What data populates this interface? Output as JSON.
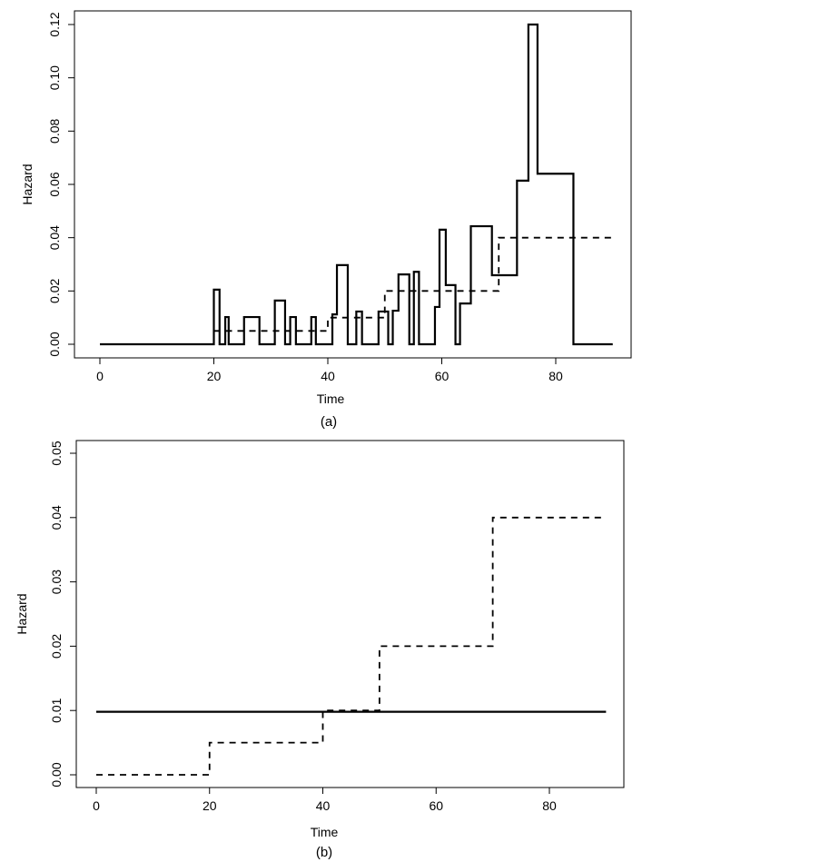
{
  "chart_data": [
    {
      "type": "line",
      "step": true,
      "caption": "(a)",
      "xlabel": "Time",
      "ylabel": "Hazard",
      "xlim": [
        0,
        90
      ],
      "ylim": [
        0,
        0.12
      ],
      "xticks": [
        "0",
        "20",
        "40",
        "60",
        "80"
      ],
      "yticks": [
        "0.00",
        "0.02",
        "0.04",
        "0.06",
        "0.08",
        "0.10",
        "0.12"
      ],
      "grid": false,
      "series": [
        {
          "style": "solid",
          "breaks": [
            0,
            20,
            21,
            22,
            22.6,
            25.3,
            28,
            30.7,
            32.5,
            33.4,
            34.4,
            37.1,
            37.9,
            40.8,
            41.6,
            43.5,
            45,
            46,
            48.9,
            50.6,
            51.4,
            52.4,
            54.3,
            55.1,
            56,
            58.8,
            59.6,
            60.7,
            62.4,
            63.2,
            65.1,
            68.8,
            73.2,
            75.2,
            76.8,
            83.1,
            90
          ],
          "values": [
            0,
            0.0205,
            0,
            0.0102,
            0,
            0.0102,
            0,
            0.0164,
            0,
            0.0102,
            0,
            0.0102,
            0,
            0.0112,
            0.0297,
            0,
            0.0123,
            0,
            0.0123,
            0,
            0.0126,
            0.0262,
            0,
            0.0272,
            0,
            0.014,
            0.043,
            0.0222,
            0,
            0.0153,
            0.0443,
            0.0259,
            0.0614,
            0.12,
            0.064,
            0
          ]
        },
        {
          "style": "dashed",
          "breaks": [
            20,
            40,
            50,
            70,
            90
          ],
          "values": [
            0.005,
            0.01,
            0.02,
            0.04
          ]
        }
      ]
    },
    {
      "type": "line",
      "step": true,
      "caption": "(b)",
      "xlabel": "Time",
      "ylabel": "Hazard",
      "xlim": [
        0,
        90
      ],
      "ylim": [
        0,
        0.05
      ],
      "xticks": [
        "0",
        "20",
        "40",
        "60",
        "80"
      ],
      "yticks": [
        "0.00",
        "0.01",
        "0.02",
        "0.03",
        "0.04",
        "0.05"
      ],
      "grid": false,
      "series": [
        {
          "style": "solid",
          "breaks": [
            0,
            90
          ],
          "values": [
            0.0098
          ]
        },
        {
          "style": "dashed",
          "breaks": [
            0,
            20,
            40,
            50,
            70,
            90
          ],
          "values": [
            0,
            0.005,
            0.01,
            0.02,
            0.04
          ]
        }
      ]
    }
  ]
}
